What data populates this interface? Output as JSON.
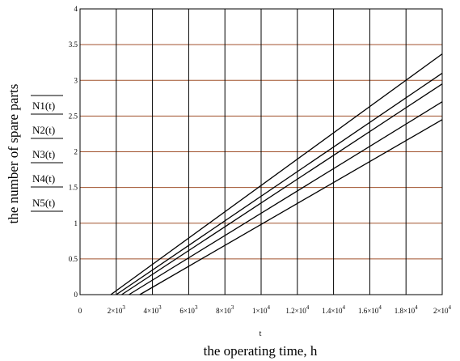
{
  "chart_data": {
    "type": "line",
    "xlabel": "the operating time, h",
    "x_variable": "t",
    "ylabel": "the number of spare parts",
    "xlim": [
      0,
      20000
    ],
    "ylim": [
      0,
      4
    ],
    "grid": true,
    "x_ticks": [
      0,
      2000,
      4000,
      6000,
      8000,
      10000,
      12000,
      14000,
      16000,
      18000,
      20000
    ],
    "x_tick_labels": [
      {
        "mant": "0",
        "exp": ""
      },
      {
        "mant": "2×10",
        "exp": "3"
      },
      {
        "mant": "4×10",
        "exp": "3"
      },
      {
        "mant": "6×10",
        "exp": "3"
      },
      {
        "mant": "8×10",
        "exp": "3"
      },
      {
        "mant": "1×10",
        "exp": "4"
      },
      {
        "mant": "1.2×10",
        "exp": "4"
      },
      {
        "mant": "1.4×10",
        "exp": "4"
      },
      {
        "mant": "1.6×10",
        "exp": "4"
      },
      {
        "mant": "1.8×10",
        "exp": "4"
      },
      {
        "mant": "2×10",
        "exp": "4"
      }
    ],
    "y_ticks": [
      0,
      0.5,
      1,
      1.5,
      2,
      2.5,
      3,
      3.5,
      4
    ],
    "y_tick_labels": [
      "0",
      "0.5",
      "1",
      "1.5",
      "2",
      "2.5",
      "3",
      "3.5",
      "4"
    ],
    "series": [
      {
        "name": "N1(t)",
        "x": [
          1700,
          20000
        ],
        "y": [
          0,
          3.37
        ]
      },
      {
        "name": "N2(t)",
        "x": [
          2000,
          20000
        ],
        "y": [
          0,
          3.1
        ]
      },
      {
        "name": "N3(t)",
        "x": [
          2300,
          20000
        ],
        "y": [
          0,
          2.95
        ]
      },
      {
        "name": "N4(t)",
        "x": [
          2700,
          20000
        ],
        "y": [
          0,
          2.7
        ]
      },
      {
        "name": "N5(t)",
        "x": [
          3300,
          20000
        ],
        "y": [
          0,
          2.45
        ]
      }
    ],
    "colors": {
      "horizontal_grid": "#a0522d",
      "vertical_grid": "#000000",
      "series": "#000000"
    }
  }
}
